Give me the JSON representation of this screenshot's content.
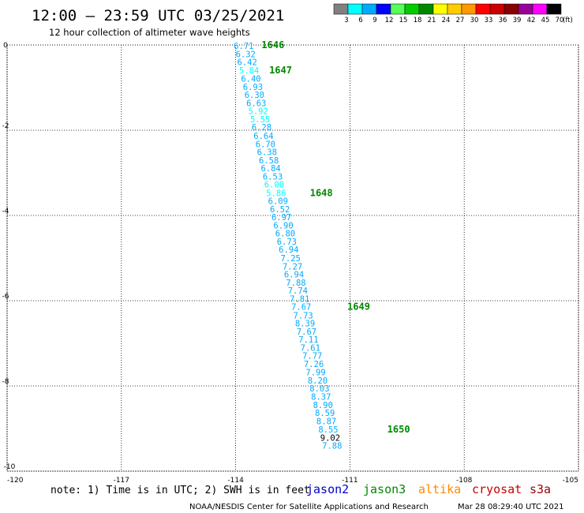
{
  "header": {
    "title": "12:00 – 23:59 UTC 03/25/2021",
    "subtitle": "12 hour collection of altimeter wave heights"
  },
  "legend": {
    "unit": "(ft)",
    "bins": [
      {
        "label": "3",
        "color": "#808080"
      },
      {
        "label": "6",
        "color": "#00ffff"
      },
      {
        "label": "9",
        "color": "#00aaff"
      },
      {
        "label": "12",
        "color": "#0000ff"
      },
      {
        "label": "15",
        "color": "#55ff55"
      },
      {
        "label": "18",
        "color": "#00cc00"
      },
      {
        "label": "21",
        "color": "#008800"
      },
      {
        "label": "24",
        "color": "#ffff00"
      },
      {
        "label": "27",
        "color": "#ffcc00"
      },
      {
        "label": "30",
        "color": "#ff9900"
      },
      {
        "label": "33",
        "color": "#ff0000"
      },
      {
        "label": "36",
        "color": "#cc0000"
      },
      {
        "label": "39",
        "color": "#880000"
      },
      {
        "label": "42",
        "color": "#990099"
      },
      {
        "label": "45",
        "color": "#ff00ff"
      },
      {
        "label": "70",
        "color": "#000000"
      }
    ]
  },
  "footer": {
    "note": "note: 1) Time is in UTC; 2) SWH is in feet",
    "satellites": [
      {
        "name": "jason2",
        "color": "#0000cc"
      },
      {
        "name": "jason3",
        "color": "#008800"
      },
      {
        "name": "altika",
        "color": "#ff8800"
      },
      {
        "name": "cryosat",
        "color": "#cc0000"
      },
      {
        "name": "s3a",
        "color": "#990000"
      }
    ],
    "credit": "NOAA/NESDIS Center for Satellite Applications and Research",
    "timestamp": "Mar 28 08:29:40 UTC 2021"
  },
  "chart_data": {
    "type": "scatter",
    "title": "12:00 – 23:59 UTC 03/25/2021",
    "xlim": [
      -120,
      -105
    ],
    "ylim": [
      -10,
      0
    ],
    "x_ticks": [
      "-120",
      "-117",
      "-114",
      "-111",
      "-108",
      "-105"
    ],
    "y_ticks": [
      "0",
      "-2",
      "-4",
      "-6",
      "-8",
      "-10"
    ],
    "grid": true,
    "colors": {
      "swh_le_9": "#00aaff",
      "swh_le_6": "#00ffff",
      "swh_le_12": "#0000cc",
      "time_label": "#008800"
    },
    "points": [
      {
        "lon": -114.05,
        "lat": -0.02,
        "swh": "6.71"
      },
      {
        "lon": -114.0,
        "lat": -0.21,
        "swh": "6.32"
      },
      {
        "lon": -113.96,
        "lat": -0.4,
        "swh": "6.42"
      },
      {
        "lon": -113.91,
        "lat": -0.59,
        "swh": "5.84"
      },
      {
        "lon": -113.86,
        "lat": -0.79,
        "swh": "6.40"
      },
      {
        "lon": -113.81,
        "lat": -0.98,
        "swh": "6.93"
      },
      {
        "lon": -113.77,
        "lat": -1.17,
        "swh": "6.30"
      },
      {
        "lon": -113.72,
        "lat": -1.36,
        "swh": "6.63"
      },
      {
        "lon": -113.67,
        "lat": -1.55,
        "swh": "5.92"
      },
      {
        "lon": -113.62,
        "lat": -1.74,
        "swh": "5.55"
      },
      {
        "lon": -113.58,
        "lat": -1.93,
        "swh": "6.28"
      },
      {
        "lon": -113.53,
        "lat": -2.13,
        "swh": "6.64"
      },
      {
        "lon": -113.48,
        "lat": -2.32,
        "swh": "6.70"
      },
      {
        "lon": -113.44,
        "lat": -2.51,
        "swh": "6.38"
      },
      {
        "lon": -113.39,
        "lat": -2.7,
        "swh": "6.58"
      },
      {
        "lon": -113.34,
        "lat": -2.89,
        "swh": "6.84"
      },
      {
        "lon": -113.29,
        "lat": -3.08,
        "swh": "6.53"
      },
      {
        "lon": -113.25,
        "lat": -3.27,
        "swh": "6.00"
      },
      {
        "lon": -113.2,
        "lat": -3.47,
        "swh": "5.86"
      },
      {
        "lon": -113.15,
        "lat": -3.66,
        "swh": "6.09"
      },
      {
        "lon": -113.1,
        "lat": -3.85,
        "swh": "6.52"
      },
      {
        "lon": -113.06,
        "lat": -4.04,
        "swh": "6.97"
      },
      {
        "lon": -113.01,
        "lat": -4.23,
        "swh": "6.90"
      },
      {
        "lon": -112.96,
        "lat": -4.42,
        "swh": "6.80"
      },
      {
        "lon": -112.92,
        "lat": -4.61,
        "swh": "6.73"
      },
      {
        "lon": -112.87,
        "lat": -4.8,
        "swh": "6.94"
      },
      {
        "lon": -112.82,
        "lat": -5.0,
        "swh": "7.25"
      },
      {
        "lon": -112.77,
        "lat": -5.19,
        "swh": "7.27"
      },
      {
        "lon": -112.73,
        "lat": -5.38,
        "swh": "6.94"
      },
      {
        "lon": -112.68,
        "lat": -5.57,
        "swh": "7.88"
      },
      {
        "lon": -112.63,
        "lat": -5.76,
        "swh": "7.74"
      },
      {
        "lon": -112.58,
        "lat": -5.95,
        "swh": "7.81"
      },
      {
        "lon": -112.54,
        "lat": -6.14,
        "swh": "7.67"
      },
      {
        "lon": -112.49,
        "lat": -6.34,
        "swh": "7.73"
      },
      {
        "lon": -112.44,
        "lat": -6.53,
        "swh": "8.39"
      },
      {
        "lon": -112.4,
        "lat": -6.72,
        "swh": "7.67"
      },
      {
        "lon": -112.35,
        "lat": -6.91,
        "swh": "7.11"
      },
      {
        "lon": -112.3,
        "lat": -7.1,
        "swh": "7.61"
      },
      {
        "lon": -112.25,
        "lat": -7.29,
        "swh": "7.77"
      },
      {
        "lon": -112.21,
        "lat": -7.48,
        "swh": "7.26"
      },
      {
        "lon": -112.16,
        "lat": -7.68,
        "swh": "7.99"
      },
      {
        "lon": -112.11,
        "lat": -7.87,
        "swh": "8.20"
      },
      {
        "lon": -112.06,
        "lat": -8.06,
        "swh": "8.03"
      },
      {
        "lon": -112.02,
        "lat": -8.25,
        "swh": "8.37"
      },
      {
        "lon": -111.97,
        "lat": -8.44,
        "swh": "8.90"
      },
      {
        "lon": -111.92,
        "lat": -8.63,
        "swh": "8.59"
      },
      {
        "lon": -111.88,
        "lat": -8.82,
        "swh": "8.87"
      },
      {
        "lon": -111.83,
        "lat": -9.02,
        "swh": "8.55"
      },
      {
        "lon": -111.78,
        "lat": -9.21,
        "swh": "9.02"
      },
      {
        "lon": -111.73,
        "lat": -9.4,
        "swh": "7.88"
      }
    ],
    "time_labels": [
      {
        "lon": -113.32,
        "lat": 0.0,
        "text": "1646"
      },
      {
        "lon": -113.12,
        "lat": -0.59,
        "text": "1647"
      },
      {
        "lon": -112.05,
        "lat": -3.47,
        "text": "1648"
      },
      {
        "lon": -111.07,
        "lat": -6.14,
        "text": "1649"
      },
      {
        "lon": -110.02,
        "lat": -9.02,
        "text": "1650"
      }
    ]
  }
}
